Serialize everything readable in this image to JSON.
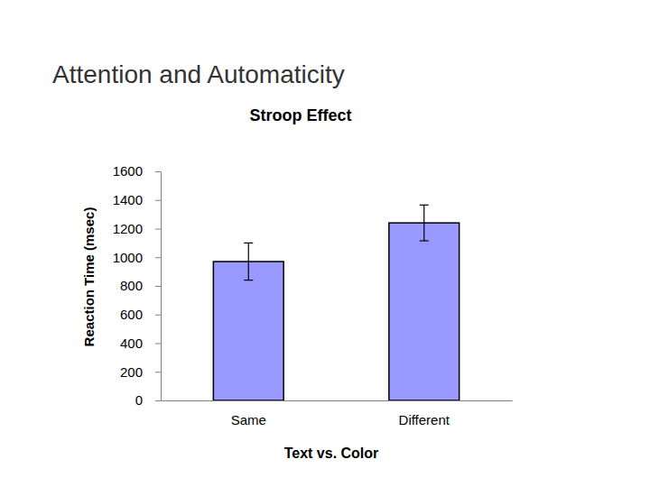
{
  "header": {
    "title": "Attention and Automaticity"
  },
  "chart_data": {
    "type": "bar",
    "title": "Stroop Effect",
    "x_label": "Text vs. Color",
    "y_label": "Reaction Time (msec)",
    "categories": [
      "Same",
      "Different"
    ],
    "values": [
      970,
      1240
    ],
    "errors": [
      130,
      125
    ],
    "color": "#9999ff",
    "ylim": [
      0,
      1600
    ],
    "yticks": [
      0,
      200,
      400,
      600,
      800,
      1000,
      1200,
      1400,
      1600
    ],
    "grid": false
  }
}
